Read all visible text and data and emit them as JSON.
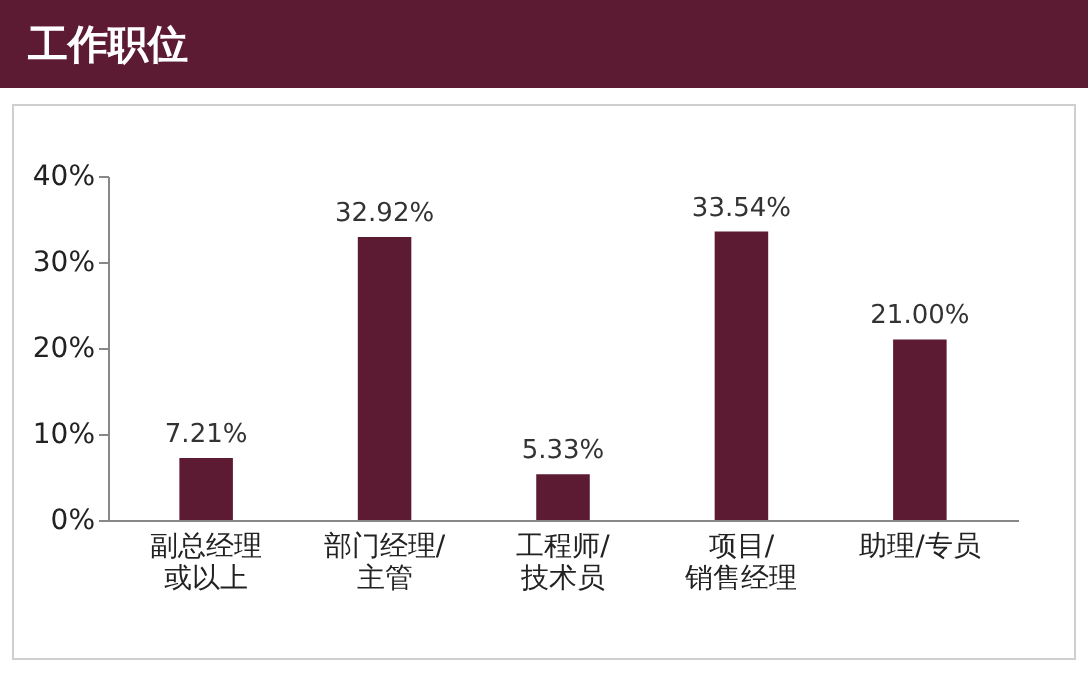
{
  "chart_data": {
    "type": "bar",
    "title": "工作职位",
    "categories": [
      "副总经理或以上",
      "部门经理/主管",
      "工程师/技术员",
      "项目/销售经理",
      "助理/专员"
    ],
    "values": [
      7.21,
      32.92,
      5.33,
      33.54,
      21.0
    ],
    "value_labels": [
      "7.21%",
      "32.92%",
      "5.33%",
      "33.54%",
      "21.00%"
    ],
    "color": "#5c1a33",
    "ylim": [
      0,
      40
    ],
    "yticks": [
      {
        "value": 0,
        "label": "0%"
      },
      {
        "value": 10,
        "label": "10%"
      },
      {
        "value": 20,
        "label": "20%"
      },
      {
        "value": 30,
        "label": "30%"
      },
      {
        "value": 40,
        "label": "40%"
      }
    ]
  }
}
